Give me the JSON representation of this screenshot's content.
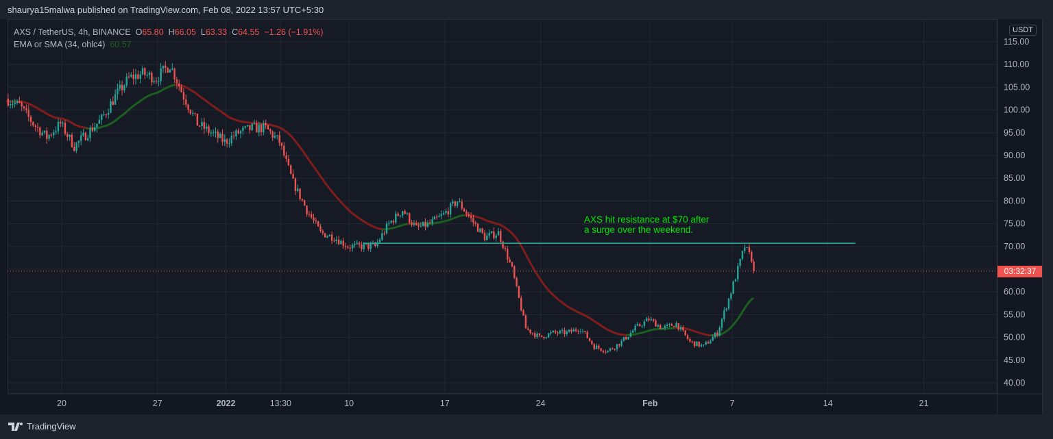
{
  "header": {
    "publisher": "shaurya15malwa published on TradingView.com, Feb 08, 2022 13:57 UTC+5:30"
  },
  "legend": {
    "symbol": "AXS / TetherUS, 4h, BINANCE",
    "o_label": "O",
    "o": "65.80",
    "h_label": "H",
    "h": "66.05",
    "l_label": "L",
    "l": "63.33",
    "c_label": "C",
    "c": "64.55",
    "change": "−1.26 (−1.91%)",
    "indicator": "EMA or SMA (34, ohlc4)",
    "indicator_value": "60.57"
  },
  "annotation": {
    "line1": "AXS hit resistance at $70 after",
    "line2": "a surge over the weekend."
  },
  "price_axis": {
    "unit": "USDT",
    "countdown": "03:32:37"
  },
  "footer": {
    "brand": "TradingView"
  },
  "colors": {
    "up": "#26a69a",
    "down": "#ef5350",
    "ema_above": "#1b5e20",
    "ema_below": "#7f1d1d",
    "resistance": "#26a69a",
    "background": "#161a25"
  },
  "chart_data": {
    "type": "candlestick",
    "timeframe": "4h",
    "ylim": [
      37,
      118
    ],
    "y_ticks": [
      40,
      45,
      50,
      55,
      60,
      65,
      70,
      75,
      80,
      85,
      90,
      95,
      100,
      105,
      110,
      115
    ],
    "x_ticks": [
      {
        "label": "20",
        "date": "2021-12-20"
      },
      {
        "label": "27",
        "date": "2021-12-27"
      },
      {
        "label": "2022",
        "date": "2022-01-01"
      },
      {
        "label": "13:30",
        "date": "2022-01-05"
      },
      {
        "label": "10",
        "date": "2022-01-10"
      },
      {
        "label": "17",
        "date": "2022-01-17"
      },
      {
        "label": "24",
        "date": "2022-01-24"
      },
      {
        "label": "Feb",
        "date": "2022-02-01"
      },
      {
        "label": "7",
        "date": "2022-02-07"
      },
      {
        "label": "14",
        "date": "2022-02-14"
      },
      {
        "label": "21",
        "date": "2022-02-21"
      }
    ],
    "start_date": "2021-12-16",
    "daily_closes": [
      101,
      97,
      94,
      97,
      92,
      95,
      98,
      103,
      107,
      108,
      107,
      110,
      103,
      97,
      95,
      93,
      95,
      96,
      96,
      93,
      84,
      78,
      73,
      72,
      70,
      70,
      70,
      75,
      78,
      74,
      75,
      77,
      80,
      76,
      72,
      73,
      65,
      52,
      50,
      51,
      51,
      52,
      48,
      47,
      49,
      52,
      54,
      52,
      53,
      49,
      48,
      51,
      60,
      70,
      64.55
    ],
    "last_close": 64.55,
    "ema_last": 60.57,
    "resistance": {
      "price": 70.7,
      "from": "2022-01-11",
      "to": "2022-02-16"
    }
  }
}
